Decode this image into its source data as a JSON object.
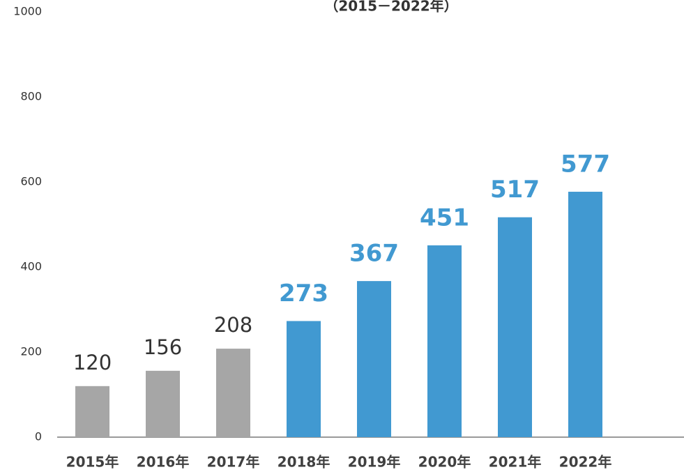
{
  "chart_data": {
    "type": "bar",
    "subtitle": "（2015－2022年）",
    "categories": [
      "2015年",
      "2016年",
      "2017年",
      "2018年",
      "2019年",
      "2020年",
      "2021年",
      "2022年"
    ],
    "values": [
      120,
      156,
      208,
      273,
      367,
      451,
      517,
      577
    ],
    "colors": [
      "#a6a6a6",
      "#a6a6a6",
      "#a6a6a6",
      "#4199d1",
      "#4199d1",
      "#4199d1",
      "#4199d1",
      "#4199d1"
    ],
    "value_label_colors": [
      "#333333",
      "#333333",
      "#333333",
      "#4199d1",
      "#4199d1",
      "#4199d1",
      "#4199d1",
      "#4199d1"
    ],
    "value_label_bold": [
      false,
      false,
      false,
      true,
      true,
      true,
      true,
      true
    ],
    "ylim": [
      0,
      1000
    ],
    "yticks": [
      0,
      200,
      400,
      600,
      800,
      1000
    ],
    "grid": false
  }
}
